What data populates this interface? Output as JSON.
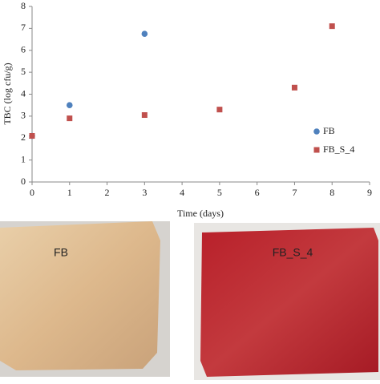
{
  "chart_data": {
    "type": "scatter",
    "xlabel": "Time (days)",
    "ylabel": "TBC (log cfu/g)",
    "series": [
      {
        "name": "FB",
        "color": "#4f81bd",
        "marker": "circle",
        "x": [
          0,
          1,
          3
        ],
        "values": [
          2.1,
          3.5,
          6.75
        ]
      },
      {
        "name": "FB_S_4",
        "color": "#c0504d",
        "marker": "square",
        "x": [
          0,
          1,
          3,
          5,
          7,
          8
        ],
        "values": [
          2.1,
          2.9,
          3.05,
          3.3,
          4.3,
          7.1
        ]
      }
    ],
    "xlim": [
      0,
      9
    ],
    "xticks": [
      0,
      1,
      2,
      3,
      4,
      5,
      6,
      7,
      8,
      9
    ],
    "ylim": [
      0,
      8
    ],
    "yticks": [
      0,
      1,
      2,
      3,
      4,
      5,
      6,
      7,
      8
    ],
    "grid": false,
    "legend": "right"
  },
  "photos": [
    {
      "label": "FB"
    },
    {
      "label": "FB_S_4"
    }
  ]
}
